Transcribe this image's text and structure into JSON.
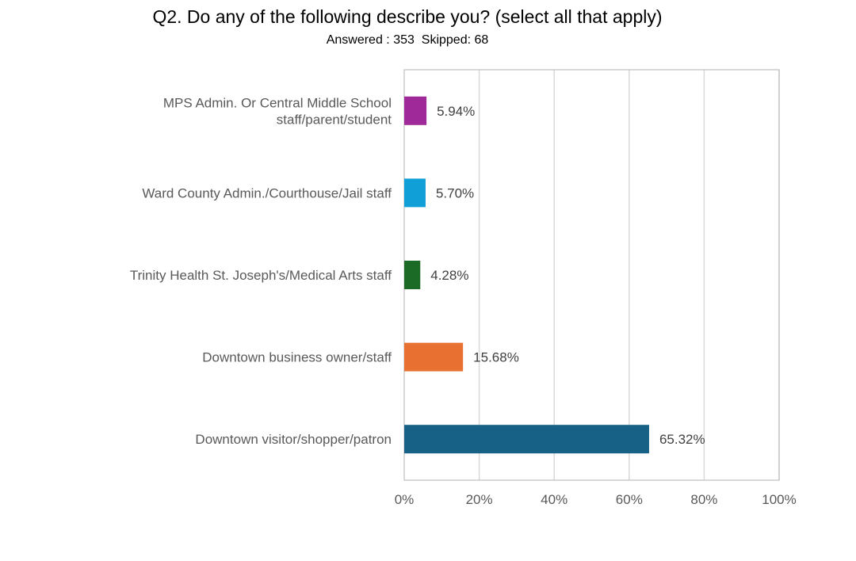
{
  "chart_data": {
    "type": "bar",
    "orientation": "horizontal",
    "title": "Q2. Do any of the following describe you? (select all that apply)",
    "subtitle": {
      "answered_label": "Answered :",
      "answered": 353,
      "skipped_label": "Skipped:",
      "skipped": 68
    },
    "categories": [
      [
        "MPS Admin. Or Central Middle School",
        "staff/parent/student"
      ],
      [
        "Ward County Admin./Courthouse/Jail staff"
      ],
      [
        "Trinity Health St. Joseph's/Medical Arts staff"
      ],
      [
        "Downtown business owner/staff"
      ],
      [
        "Downtown visitor/shopper/patron"
      ]
    ],
    "values": [
      5.94,
      5.7,
      4.28,
      15.68,
      65.32
    ],
    "value_labels": [
      "5.94%",
      "5.70%",
      "4.28%",
      "15.68%",
      "65.32%"
    ],
    "colors": [
      "#A0299A",
      "#119FD8",
      "#1B6A25",
      "#E87132",
      "#166185"
    ],
    "xlim": [
      0,
      100
    ],
    "xticks": [
      0,
      20,
      40,
      60,
      80,
      100
    ],
    "xtick_labels": [
      "0%",
      "20%",
      "40%",
      "60%",
      "80%",
      "100%"
    ],
    "grid": true,
    "xlabel": "",
    "ylabel": ""
  }
}
